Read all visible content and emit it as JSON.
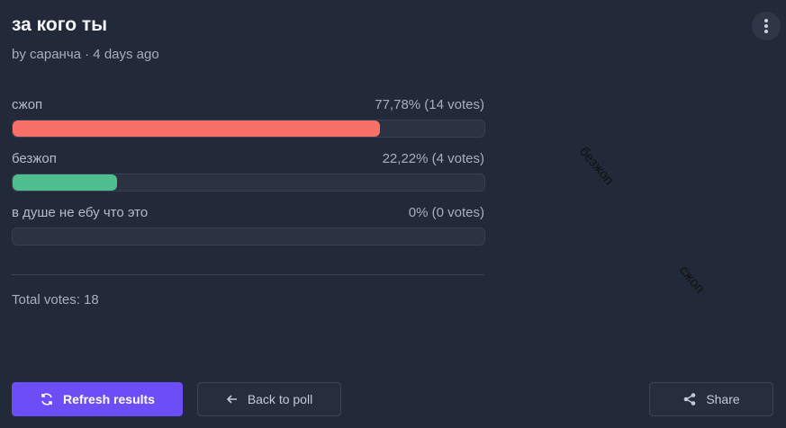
{
  "header": {
    "title": "за кого ты",
    "byline": "by саранча · 4 days ago"
  },
  "options": [
    {
      "label": "сжоп",
      "result": "77,78% (14 votes)",
      "percent": 77.78,
      "votes": 14,
      "color": "#f87168"
    },
    {
      "label": "безжоп",
      "result": "22,22% (4 votes)",
      "percent": 22.22,
      "votes": 4,
      "color": "#4fbf8f"
    },
    {
      "label": "в душе не ебу что это",
      "result": "0% (0 votes)",
      "percent": 0,
      "votes": 0,
      "color": "#8b7cf6"
    }
  ],
  "total": "Total votes: 18",
  "buttons": {
    "refresh": "Refresh results",
    "back": "Back to poll",
    "share": "Share"
  }
}
